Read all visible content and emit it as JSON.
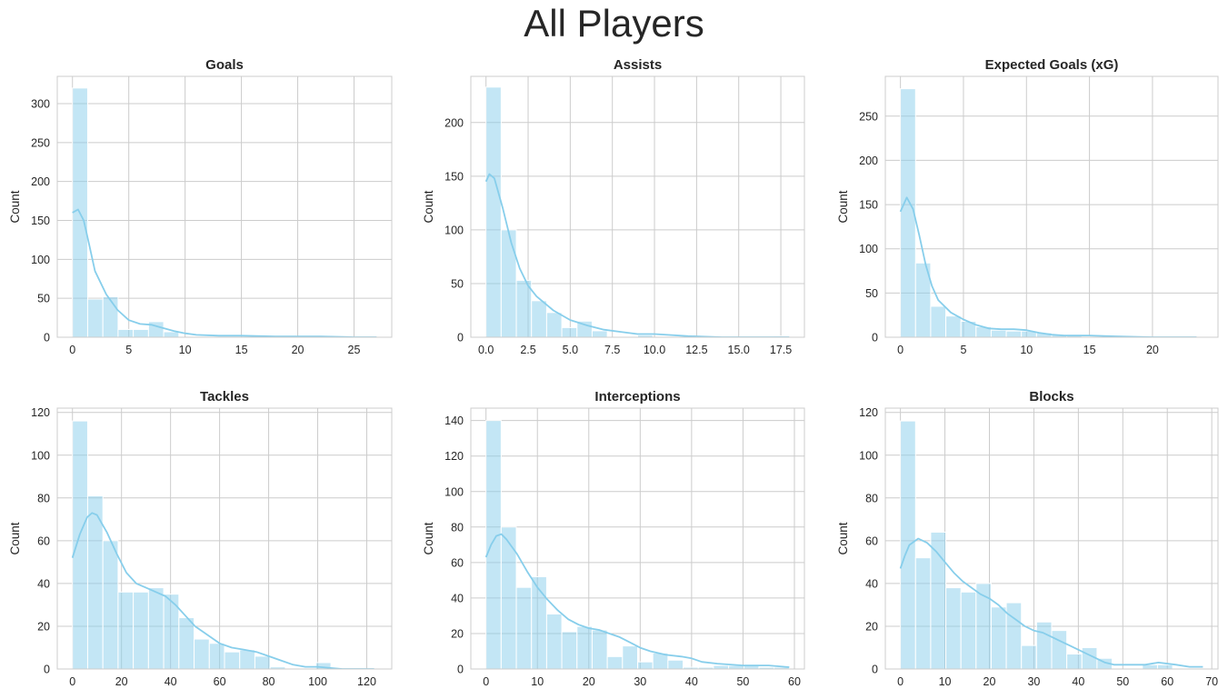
{
  "suptitle": "All Players",
  "colors": {
    "bar": "#87CEEB",
    "kde": "#87CEEB",
    "grid": "#cccccc",
    "frame": "#cccccc",
    "text": "#262626"
  },
  "chart_data": [
    {
      "type": "bar",
      "title": "Goals",
      "ylabel": "Count",
      "xlim": [
        -1.35,
        28.35
      ],
      "ylim": [
        0,
        335
      ],
      "xticks": [
        0,
        5,
        10,
        15,
        20,
        25
      ],
      "xtick_labels": [
        "0",
        "5",
        "10",
        "15",
        "20",
        "25"
      ],
      "yticks": [
        0,
        50,
        100,
        150,
        200,
        250,
        300
      ],
      "ytick_labels": [
        "0",
        "50",
        "100",
        "150",
        "200",
        "250",
        "300"
      ],
      "bin_start": 0,
      "bin_width": 1.35,
      "values": [
        320,
        49,
        52,
        10,
        10,
        20,
        7,
        0,
        0,
        0,
        0,
        0,
        0,
        0,
        0,
        0,
        0,
        0,
        0,
        1
      ],
      "kde": [
        [
          0,
          160
        ],
        [
          0.5,
          164
        ],
        [
          1,
          150
        ],
        [
          1.5,
          118
        ],
        [
          2,
          85
        ],
        [
          3,
          55
        ],
        [
          4,
          35
        ],
        [
          5,
          22
        ],
        [
          6,
          17
        ],
        [
          7,
          16
        ],
        [
          8,
          12
        ],
        [
          9,
          8
        ],
        [
          10,
          5
        ],
        [
          11,
          3
        ],
        [
          13,
          2
        ],
        [
          15,
          2
        ],
        [
          18,
          1
        ],
        [
          20,
          1
        ],
        [
          22,
          1
        ],
        [
          25,
          0
        ],
        [
          27,
          0
        ]
      ]
    },
    {
      "type": "bar",
      "title": "Assists",
      "ylabel": "Count",
      "xlim": [
        -0.9,
        18.9
      ],
      "ylim": [
        0,
        243
      ],
      "xticks": [
        0,
        2.5,
        5,
        7.5,
        10,
        12.5,
        15,
        17.5
      ],
      "xtick_labels": [
        "0.0",
        "2.5",
        "5.0",
        "7.5",
        "10.0",
        "12.5",
        "15.0",
        "17.5"
      ],
      "yticks": [
        0,
        50,
        100,
        150,
        200
      ],
      "ytick_labels": [
        "0",
        "50",
        "100",
        "150",
        "200"
      ],
      "bin_start": 0,
      "bin_width": 0.9,
      "values": [
        233,
        100,
        53,
        34,
        23,
        9,
        15,
        6,
        0,
        0,
        2,
        0,
        0,
        0,
        0,
        0,
        0,
        0,
        0,
        1
      ],
      "kde": [
        [
          0,
          145
        ],
        [
          0.2,
          152
        ],
        [
          0.5,
          148
        ],
        [
          1,
          120
        ],
        [
          1.5,
          88
        ],
        [
          2,
          64
        ],
        [
          2.5,
          48
        ],
        [
          3,
          38
        ],
        [
          4,
          25
        ],
        [
          5,
          16
        ],
        [
          6,
          11
        ],
        [
          7,
          7
        ],
        [
          8,
          5
        ],
        [
          9,
          3
        ],
        [
          10,
          3
        ],
        [
          11,
          2
        ],
        [
          12,
          1
        ],
        [
          14,
          0
        ],
        [
          16,
          0
        ],
        [
          18,
          0
        ]
      ]
    },
    {
      "type": "bar",
      "title": "Expected Goals (xG)",
      "ylabel": "Count",
      "xlim": [
        -1.2,
        25.2
      ],
      "ylim": [
        0,
        295
      ],
      "xticks": [
        0,
        5,
        10,
        15,
        20
      ],
      "xtick_labels": [
        "0",
        "5",
        "10",
        "15",
        "20"
      ],
      "yticks": [
        0,
        50,
        100,
        150,
        200,
        250
      ],
      "ytick_labels": [
        "0",
        "50",
        "100",
        "150",
        "200",
        "250"
      ],
      "bin_start": 0,
      "bin_width": 1.2,
      "values": [
        281,
        84,
        35,
        24,
        18,
        12,
        8,
        7,
        7,
        5,
        3,
        2,
        1,
        1,
        1,
        0,
        0,
        0,
        0,
        1
      ],
      "kde": [
        [
          0,
          142
        ],
        [
          0.5,
          158
        ],
        [
          1,
          145
        ],
        [
          1.5,
          115
        ],
        [
          2,
          82
        ],
        [
          2.5,
          58
        ],
        [
          3,
          42
        ],
        [
          4,
          28
        ],
        [
          5,
          20
        ],
        [
          6,
          14
        ],
        [
          7,
          10
        ],
        [
          8,
          9
        ],
        [
          9,
          9
        ],
        [
          10,
          8
        ],
        [
          11,
          5
        ],
        [
          12,
          3
        ],
        [
          13,
          2
        ],
        [
          15,
          2
        ],
        [
          17,
          1
        ],
        [
          20,
          0
        ],
        [
          23.5,
          0
        ]
      ]
    },
    {
      "type": "bar",
      "title": "Tackles",
      "ylabel": "Count",
      "xlim": [
        -6.2,
        130.2
      ],
      "ylim": [
        0,
        122
      ],
      "xticks": [
        0,
        20,
        40,
        60,
        80,
        100,
        120
      ],
      "xtick_labels": [
        "0",
        "20",
        "40",
        "60",
        "80",
        "100",
        "120"
      ],
      "yticks": [
        0,
        20,
        40,
        60,
        80,
        100,
        120
      ],
      "ytick_labels": [
        "0",
        "20",
        "40",
        "60",
        "80",
        "100",
        "120"
      ],
      "bin_start": 0,
      "bin_width": 6.2,
      "values": [
        116,
        81,
        60,
        36,
        36,
        38,
        35,
        24,
        14,
        12,
        8,
        9,
        6,
        1,
        0,
        0,
        3,
        0,
        0,
        0
      ],
      "kde": [
        [
          0,
          52
        ],
        [
          3,
          63
        ],
        [
          6,
          71
        ],
        [
          8,
          73
        ],
        [
          10,
          72
        ],
        [
          14,
          64
        ],
        [
          18,
          54
        ],
        [
          22,
          45
        ],
        [
          26,
          40
        ],
        [
          30,
          38
        ],
        [
          34,
          36
        ],
        [
          38,
          34
        ],
        [
          42,
          30
        ],
        [
          46,
          25
        ],
        [
          50,
          20
        ],
        [
          55,
          16
        ],
        [
          60,
          12
        ],
        [
          65,
          10
        ],
        [
          70,
          9
        ],
        [
          75,
          8
        ],
        [
          80,
          6
        ],
        [
          85,
          4
        ],
        [
          90,
          2
        ],
        [
          95,
          1
        ],
        [
          100,
          1
        ],
        [
          110,
          0
        ],
        [
          123,
          0
        ]
      ]
    },
    {
      "type": "bar",
      "title": "Interceptions",
      "ylabel": "Count",
      "xlim": [
        -2.95,
        61.95
      ],
      "ylim": [
        0,
        147
      ],
      "xticks": [
        0,
        10,
        20,
        30,
        40,
        50,
        60
      ],
      "xtick_labels": [
        "0",
        "10",
        "20",
        "30",
        "40",
        "50",
        "60"
      ],
      "yticks": [
        0,
        20,
        40,
        60,
        80,
        100,
        120,
        140
      ],
      "ytick_labels": [
        "0",
        "20",
        "40",
        "60",
        "80",
        "100",
        "120",
        "140"
      ],
      "bin_start": 0,
      "bin_width": 2.95,
      "values": [
        140,
        80,
        46,
        52,
        31,
        21,
        24,
        22,
        7,
        13,
        4,
        9,
        5,
        1,
        1,
        2,
        2,
        2,
        1,
        1
      ],
      "kde": [
        [
          0,
          63
        ],
        [
          1,
          70
        ],
        [
          2,
          75
        ],
        [
          3,
          76
        ],
        [
          4,
          73
        ],
        [
          6,
          65
        ],
        [
          8,
          55
        ],
        [
          10,
          46
        ],
        [
          12,
          39
        ],
        [
          14,
          33
        ],
        [
          16,
          28
        ],
        [
          18,
          25
        ],
        [
          20,
          23
        ],
        [
          22,
          22
        ],
        [
          24,
          20
        ],
        [
          26,
          18
        ],
        [
          28,
          15
        ],
        [
          30,
          12
        ],
        [
          32,
          10
        ],
        [
          35,
          8
        ],
        [
          38,
          7
        ],
        [
          40,
          6
        ],
        [
          42,
          4
        ],
        [
          45,
          3
        ],
        [
          50,
          2
        ],
        [
          55,
          2
        ],
        [
          59,
          1
        ]
      ]
    },
    {
      "type": "bar",
      "title": "Blocks",
      "ylabel": "Count",
      "xlim": [
        -3.4,
        71.4
      ],
      "ylim": [
        0,
        122
      ],
      "xticks": [
        0,
        10,
        20,
        30,
        40,
        50,
        60,
        70
      ],
      "xtick_labels": [
        "0",
        "10",
        "20",
        "30",
        "40",
        "50",
        "60",
        "70"
      ],
      "yticks": [
        0,
        20,
        40,
        60,
        80,
        100,
        120
      ],
      "ytick_labels": [
        "0",
        "20",
        "40",
        "60",
        "80",
        "100",
        "120"
      ],
      "bin_start": 0,
      "bin_width": 3.4,
      "values": [
        116,
        52,
        64,
        38,
        36,
        40,
        29,
        31,
        11,
        22,
        18,
        7,
        10,
        5,
        0,
        0,
        2,
        2,
        0,
        0
      ],
      "kde": [
        [
          0,
          47
        ],
        [
          1,
          53
        ],
        [
          2,
          58
        ],
        [
          4,
          61
        ],
        [
          6,
          59
        ],
        [
          8,
          55
        ],
        [
          10,
          50
        ],
        [
          12,
          45
        ],
        [
          14,
          41
        ],
        [
          16,
          38
        ],
        [
          18,
          35
        ],
        [
          20,
          33
        ],
        [
          22,
          30
        ],
        [
          24,
          26
        ],
        [
          26,
          23
        ],
        [
          28,
          20
        ],
        [
          30,
          18
        ],
        [
          32,
          17
        ],
        [
          34,
          15
        ],
        [
          36,
          13
        ],
        [
          38,
          11
        ],
        [
          40,
          9
        ],
        [
          42,
          7
        ],
        [
          44,
          5
        ],
        [
          46,
          3
        ],
        [
          48,
          2
        ],
        [
          50,
          2
        ],
        [
          55,
          2
        ],
        [
          58,
          3
        ],
        [
          62,
          2
        ],
        [
          65,
          1
        ],
        [
          68,
          1
        ]
      ]
    }
  ]
}
